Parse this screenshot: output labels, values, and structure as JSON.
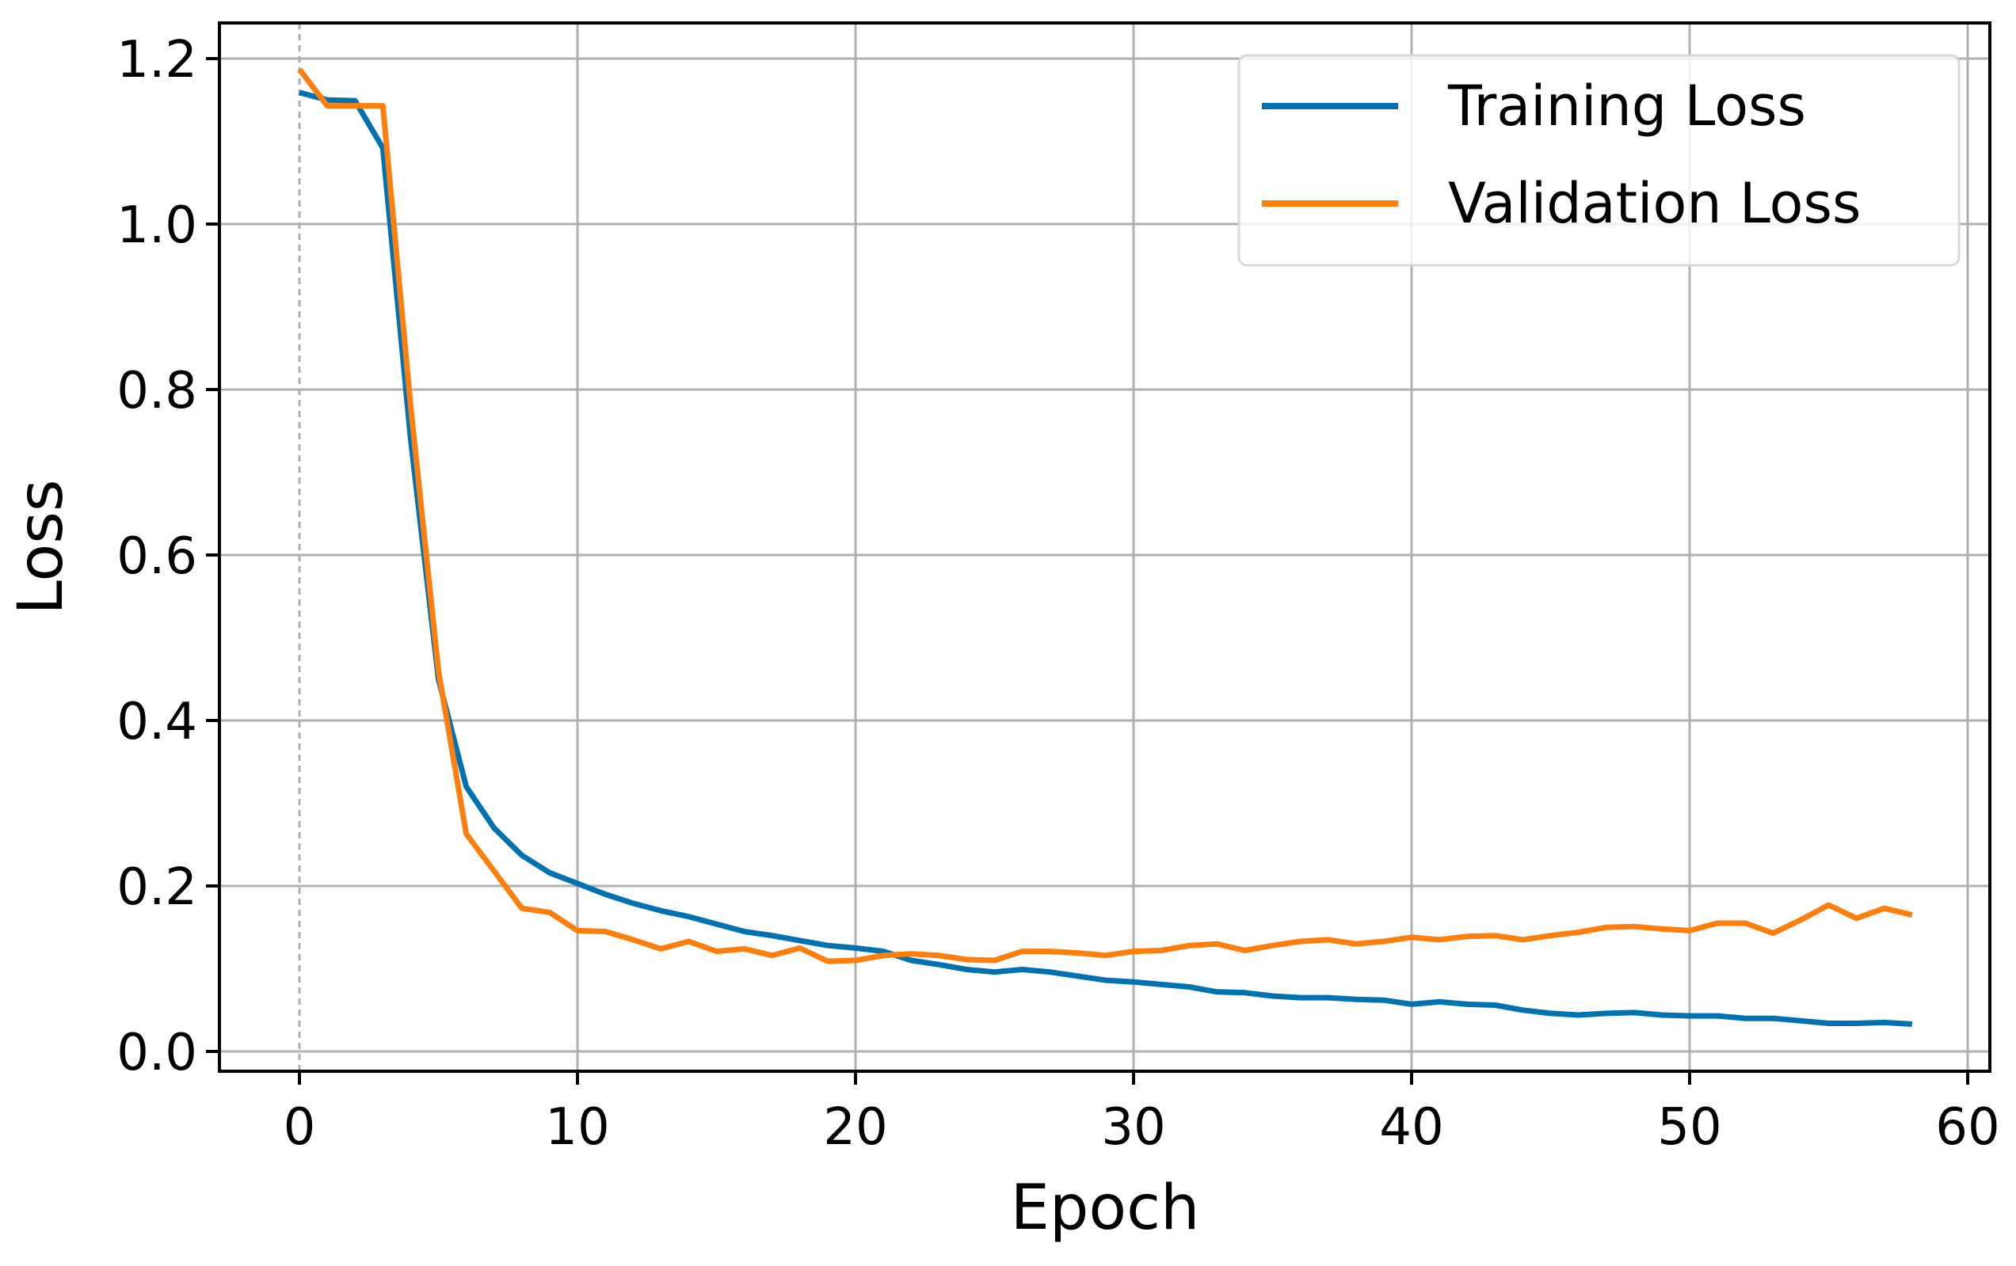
{
  "chart_data": {
    "type": "line",
    "title": "",
    "xlabel": "Epoch",
    "ylabel": "Loss",
    "xlim": [
      -2.9,
      61
    ],
    "ylim": [
      -0.024,
      1.243
    ],
    "xticks": [
      0,
      10,
      20,
      30,
      40,
      50,
      60
    ],
    "xtick_labels": [
      "0",
      "10",
      "20",
      "30",
      "40",
      "50",
      "60"
    ],
    "yticks": [
      0.0,
      0.2,
      0.4,
      0.6,
      0.8,
      1.0,
      1.2
    ],
    "ytick_labels": [
      "0.0",
      "0.2",
      "0.4",
      "0.6",
      "0.8",
      "1.0",
      "1.2"
    ],
    "grid": true,
    "legend_position": "upper right",
    "x": [
      0,
      1,
      2,
      3,
      4,
      5,
      6,
      7,
      8,
      9,
      10,
      11,
      12,
      13,
      14,
      15,
      16,
      17,
      18,
      19,
      20,
      21,
      22,
      23,
      24,
      25,
      26,
      27,
      28,
      29,
      30,
      31,
      32,
      33,
      34,
      35,
      36,
      37,
      38,
      39,
      40,
      41,
      42,
      43,
      44,
      45,
      46,
      47,
      48,
      49,
      50,
      51,
      52,
      53,
      54,
      55,
      56,
      57,
      58
    ],
    "series": [
      {
        "name": "Training Loss",
        "color": "#0072b2",
        "values": [
          1.159,
          1.15,
          1.149,
          1.092,
          0.74,
          0.45,
          0.32,
          0.27,
          0.237,
          0.216,
          0.203,
          0.19,
          0.179,
          0.17,
          0.163,
          0.154,
          0.145,
          0.14,
          0.134,
          0.128,
          0.125,
          0.121,
          0.11,
          0.105,
          0.099,
          0.096,
          0.099,
          0.096,
          0.091,
          0.086,
          0.084,
          0.081,
          0.078,
          0.072,
          0.071,
          0.067,
          0.065,
          0.065,
          0.063,
          0.062,
          0.057,
          0.06,
          0.057,
          0.056,
          0.05,
          0.046,
          0.044,
          0.046,
          0.047,
          0.044,
          0.043,
          0.043,
          0.04,
          0.04,
          0.037,
          0.034,
          0.034,
          0.035,
          0.033
        ]
      },
      {
        "name": "Validation Loss",
        "color": "#ff7f0e",
        "values": [
          1.187,
          1.143,
          1.143,
          1.143,
          0.78,
          0.46,
          0.263,
          0.218,
          0.173,
          0.168,
          0.146,
          0.145,
          0.135,
          0.124,
          0.133,
          0.121,
          0.124,
          0.116,
          0.125,
          0.109,
          0.11,
          0.116,
          0.118,
          0.116,
          0.111,
          0.11,
          0.121,
          0.121,
          0.119,
          0.116,
          0.121,
          0.122,
          0.128,
          0.13,
          0.122,
          0.128,
          0.133,
          0.135,
          0.13,
          0.133,
          0.138,
          0.135,
          0.139,
          0.14,
          0.135,
          0.14,
          0.144,
          0.15,
          0.151,
          0.148,
          0.146,
          0.155,
          0.155,
          0.143,
          0.159,
          0.177,
          0.161,
          0.173,
          0.165
        ]
      }
    ]
  },
  "legend": {
    "items": [
      {
        "label": "Training Loss",
        "color": "#0072b2"
      },
      {
        "label": "Validation Loss",
        "color": "#ff7f0e"
      }
    ]
  },
  "axes": {
    "xlabel": "Epoch",
    "ylabel": "Loss"
  }
}
